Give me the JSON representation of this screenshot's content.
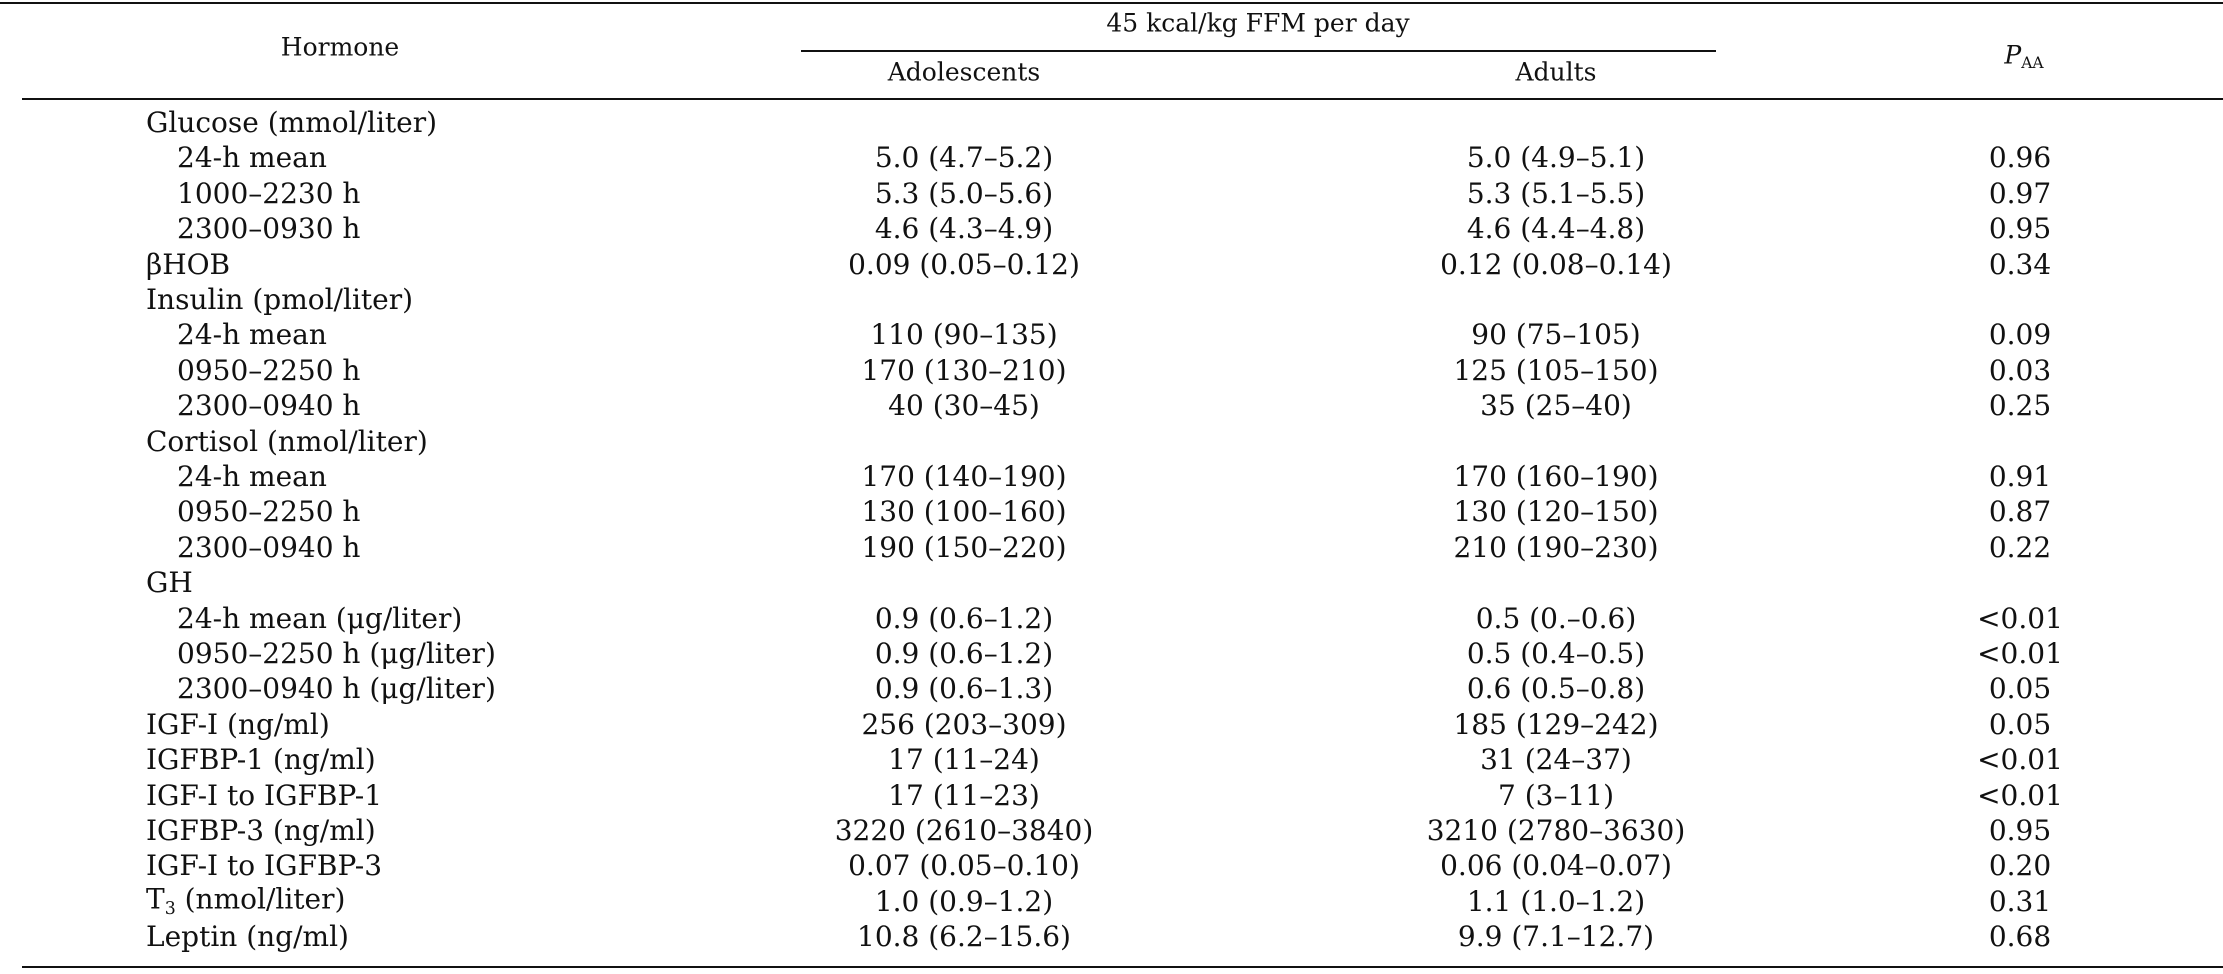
{
  "header": {
    "hormone": "Hormone",
    "group": "45 kcal/kg FFM per day",
    "adolescents": "Adolescents",
    "adults": "Adults",
    "p": "P",
    "p_sub": "AA"
  },
  "table": {
    "rows": [
      {
        "label": "Glucose (mmol/liter)",
        "rows": [
          {
            "label": "24-h mean",
            "adolescents": "5.0 (4.7–5.2)",
            "adults": "5.0 (4.9–5.1)",
            "p": "0.96"
          },
          {
            "label": "1000–2230 h",
            "adolescents": "5.3 (5.0–5.6)",
            "adults": "5.3 (5.1–5.5)",
            "p": "0.97"
          },
          {
            "label": "2300–0930 h",
            "adolescents": "4.6 (4.3–4.9)",
            "adults": "4.6 (4.4–4.8)",
            "p": "0.95"
          }
        ]
      },
      {
        "label": "βHOB",
        "adolescents": "0.09 (0.05–0.12)",
        "adults": "0.12 (0.08–0.14)",
        "p": "0.34"
      },
      {
        "label": "Insulin (pmol/liter)",
        "rows": [
          {
            "label": "24-h mean",
            "adolescents": "110 (90–135)",
            "adults": "90 (75–105)",
            "p": "0.09"
          },
          {
            "label": "0950–2250 h",
            "adolescents": "170 (130–210)",
            "adults": "125 (105–150)",
            "p": "0.03"
          },
          {
            "label": "2300–0940 h",
            "adolescents": "40 (30–45)",
            "adults": "35 (25–40)",
            "p": "0.25"
          }
        ]
      },
      {
        "label": "Cortisol (nmol/liter)",
        "rows": [
          {
            "label": "24-h mean",
            "adolescents": "170 (140–190)",
            "adults": "170 (160–190)",
            "p": "0.91"
          },
          {
            "label": "0950–2250 h",
            "adolescents": "130 (100–160)",
            "adults": "130 (120–150)",
            "p": "0.87"
          },
          {
            "label": "2300–0940 h",
            "adolescents": "190 (150–220)",
            "adults": "210 (190–230)",
            "p": "0.22"
          }
        ]
      },
      {
        "label": "GH",
        "rows": [
          {
            "label": "24-h mean (μg/liter)",
            "adolescents": "0.9 (0.6–1.2)",
            "adults": "0.5 (0.–0.6)",
            "p": "<0.01"
          },
          {
            "label": "0950–2250 h (μg/liter)",
            "adolescents": "0.9 (0.6–1.2)",
            "adults": "0.5 (0.4–0.5)",
            "p": "<0.01"
          },
          {
            "label": "2300–0940 h (μg/liter)",
            "adolescents": "0.9 (0.6–1.3)",
            "adults": "0.6 (0.5–0.8)",
            "p": "0.05"
          }
        ]
      },
      {
        "label": "IGF-I (ng/ml)",
        "adolescents": "256 (203–309)",
        "adults": "185 (129–242)",
        "p": "0.05"
      },
      {
        "label": "IGFBP-1 (ng/ml)",
        "adolescents": "17 (11–24)",
        "adults": "31 (24–37)",
        "p": "<0.01"
      },
      {
        "label": "IGF-I to IGFBP-1",
        "adolescents": "17 (11–23)",
        "adults": "7 (3–11)",
        "p": "<0.01"
      },
      {
        "label": "IGFBP-3 (ng/ml)",
        "adolescents": "3220 (2610–3840)",
        "adults": "3210 (2780–3630)",
        "p": "0.95"
      },
      {
        "label": "IGF-I to IGFBP-3",
        "adolescents": "0.07 (0.05–0.10)",
        "adults": "0.06 (0.04–0.07)",
        "p": "0.20"
      },
      {
        "label": "T",
        "label_sub": "3",
        "label_after": " (nmol/liter)",
        "adolescents": "1.0 (0.9–1.2)",
        "adults": "1.1 (1.0–1.2)",
        "p": "0.31"
      },
      {
        "label": "Leptin (ng/ml)",
        "adolescents": "10.8 (6.2–15.6)",
        "adults": "9.9 (7.1–12.7)",
        "p": "0.68"
      }
    ]
  }
}
